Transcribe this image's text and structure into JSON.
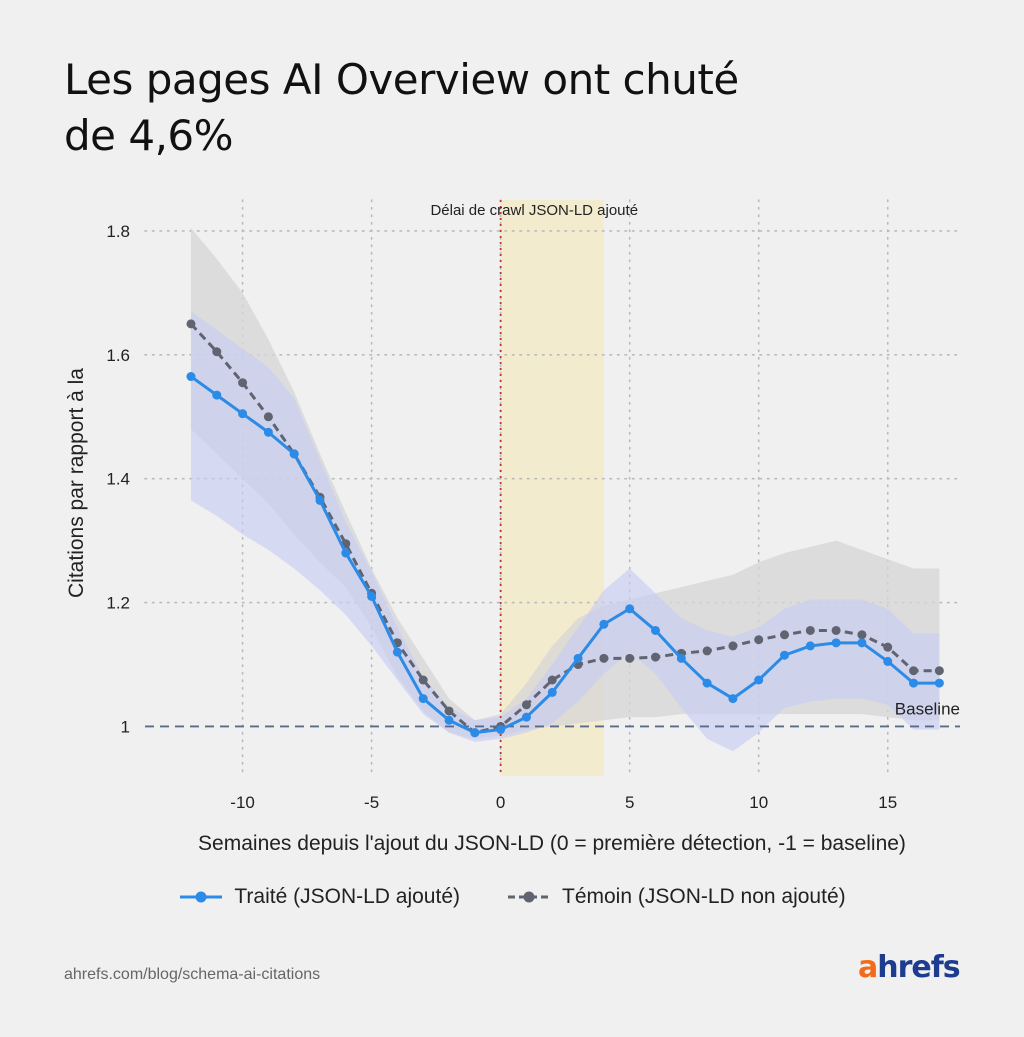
{
  "title": {
    "line1": "Les pages AI Overview ont chuté",
    "line2": "de 4,6%"
  },
  "source": "ahrefs.com/blog/schema-ai-citations",
  "logo": {
    "first": "a",
    "rest": "hrefs"
  },
  "colors": {
    "treated": "#2b8be6",
    "treated_band": "#c7cdf2",
    "control": "#5f6470",
    "control_band": "#d5d6d6",
    "crawl_band": "#f3eac8",
    "event_line": "#c0392b",
    "baseline": "#5a6a8c"
  },
  "chart_data": {
    "type": "line",
    "title": "Les pages AI Overview ont chuté de 4,6%",
    "xlabel": "Semaines depuis l'ajout du JSON-LD (0 = première détection, -1 = baseline)",
    "ylabel": "Citations par rapport à la",
    "xlim": [
      -13.2,
      17.8
    ],
    "ylim": [
      0.92,
      1.85
    ],
    "xticks": [
      -10,
      -5,
      0,
      5,
      10,
      15
    ],
    "xtick_labels": [
      "-10",
      "-5",
      "0",
      "5",
      "10",
      "15"
    ],
    "yticks": [
      1.0,
      1.2,
      1.4,
      1.6,
      1.8
    ],
    "ytick_labels": [
      "1",
      "1.2",
      "1.4",
      "1.6",
      "1.8"
    ],
    "grid": true,
    "legend_position": "bottom",
    "shaded_region": {
      "x": [
        0,
        4
      ],
      "label": "Délai de crawl JSON-LD ajouté"
    },
    "event_line_x": 0,
    "baseline": {
      "y": 1.0,
      "label": "Baseline"
    },
    "series": [
      {
        "name": "Traité (JSON-LD ajouté)",
        "x": [
          -12,
          -11,
          -10,
          -9,
          -8,
          -7,
          -6,
          -5,
          -4,
          -3,
          -2,
          -1,
          0,
          1,
          2,
          3,
          4,
          5,
          6,
          7,
          8,
          9,
          10,
          11,
          12,
          13,
          14,
          15,
          16,
          17
        ],
        "values": [
          1.565,
          1.535,
          1.505,
          1.475,
          1.44,
          1.365,
          1.28,
          1.21,
          1.12,
          1.045,
          1.01,
          0.99,
          0.995,
          1.015,
          1.055,
          1.11,
          1.165,
          1.19,
          1.155,
          1.11,
          1.07,
          1.045,
          1.075,
          1.115,
          1.13,
          1.135,
          1.135,
          1.105,
          1.07,
          1.07
        ],
        "band_upper": [
          1.67,
          1.64,
          1.61,
          1.58,
          1.53,
          1.43,
          1.33,
          1.25,
          1.16,
          1.08,
          1.03,
          1.01,
          1.015,
          1.045,
          1.1,
          1.16,
          1.22,
          1.255,
          1.215,
          1.175,
          1.155,
          1.145,
          1.16,
          1.19,
          1.205,
          1.205,
          1.205,
          1.19,
          1.15,
          1.15
        ],
        "band_lower": [
          1.365,
          1.34,
          1.31,
          1.285,
          1.255,
          1.22,
          1.18,
          1.13,
          1.075,
          1.02,
          0.99,
          0.975,
          0.98,
          0.99,
          1.005,
          1.04,
          1.085,
          1.12,
          1.085,
          1.03,
          0.98,
          0.96,
          0.99,
          1.03,
          1.04,
          1.045,
          1.045,
          1.035,
          0.995,
          0.995
        ]
      },
      {
        "name": "Témoin (JSON-LD non ajouté)",
        "x": [
          -12,
          -11,
          -10,
          -9,
          -8,
          -7,
          -6,
          -5,
          -4,
          -3,
          -2,
          -1,
          0,
          1,
          2,
          3,
          4,
          5,
          6,
          7,
          8,
          9,
          10,
          11,
          12,
          13,
          14,
          15,
          16,
          17
        ],
        "values": [
          1.65,
          1.605,
          1.555,
          1.5,
          1.44,
          1.37,
          1.295,
          1.215,
          1.135,
          1.075,
          1.025,
          0.99,
          1.0,
          1.035,
          1.075,
          1.1,
          1.11,
          1.11,
          1.112,
          1.118,
          1.122,
          1.13,
          1.14,
          1.148,
          1.155,
          1.155,
          1.148,
          1.128,
          1.09,
          1.09
        ],
        "band_upper": [
          1.805,
          1.755,
          1.7,
          1.625,
          1.54,
          1.44,
          1.345,
          1.255,
          1.175,
          1.11,
          1.045,
          1.01,
          1.02,
          1.07,
          1.13,
          1.175,
          1.195,
          1.205,
          1.215,
          1.225,
          1.235,
          1.245,
          1.265,
          1.28,
          1.29,
          1.3,
          1.285,
          1.27,
          1.255,
          1.255
        ],
        "band_lower": [
          1.48,
          1.44,
          1.4,
          1.36,
          1.31,
          1.265,
          1.225,
          1.16,
          1.08,
          1.025,
          0.99,
          0.98,
          0.985,
          0.995,
          1.0,
          1.005,
          1.01,
          1.015,
          1.015,
          1.02,
          1.02,
          1.02,
          1.02,
          1.02,
          1.02,
          1.02,
          1.02,
          1.015,
          1.01,
          1.01
        ]
      }
    ]
  }
}
